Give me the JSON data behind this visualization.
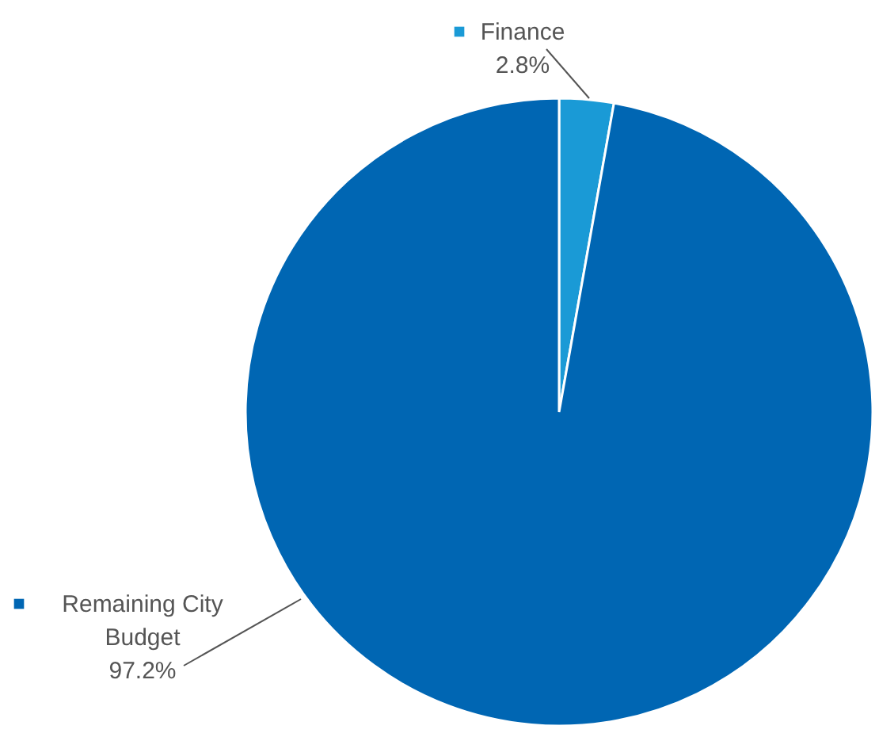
{
  "chart_data": {
    "type": "pie",
    "categories": [
      "Finance",
      "Remaining City Budget"
    ],
    "values": [
      2.8,
      97.2
    ],
    "colors": [
      "#1a9ad6",
      "#0066b3"
    ],
    "value_labels": [
      "2.8%",
      "97.2%"
    ],
    "legend": "left"
  }
}
